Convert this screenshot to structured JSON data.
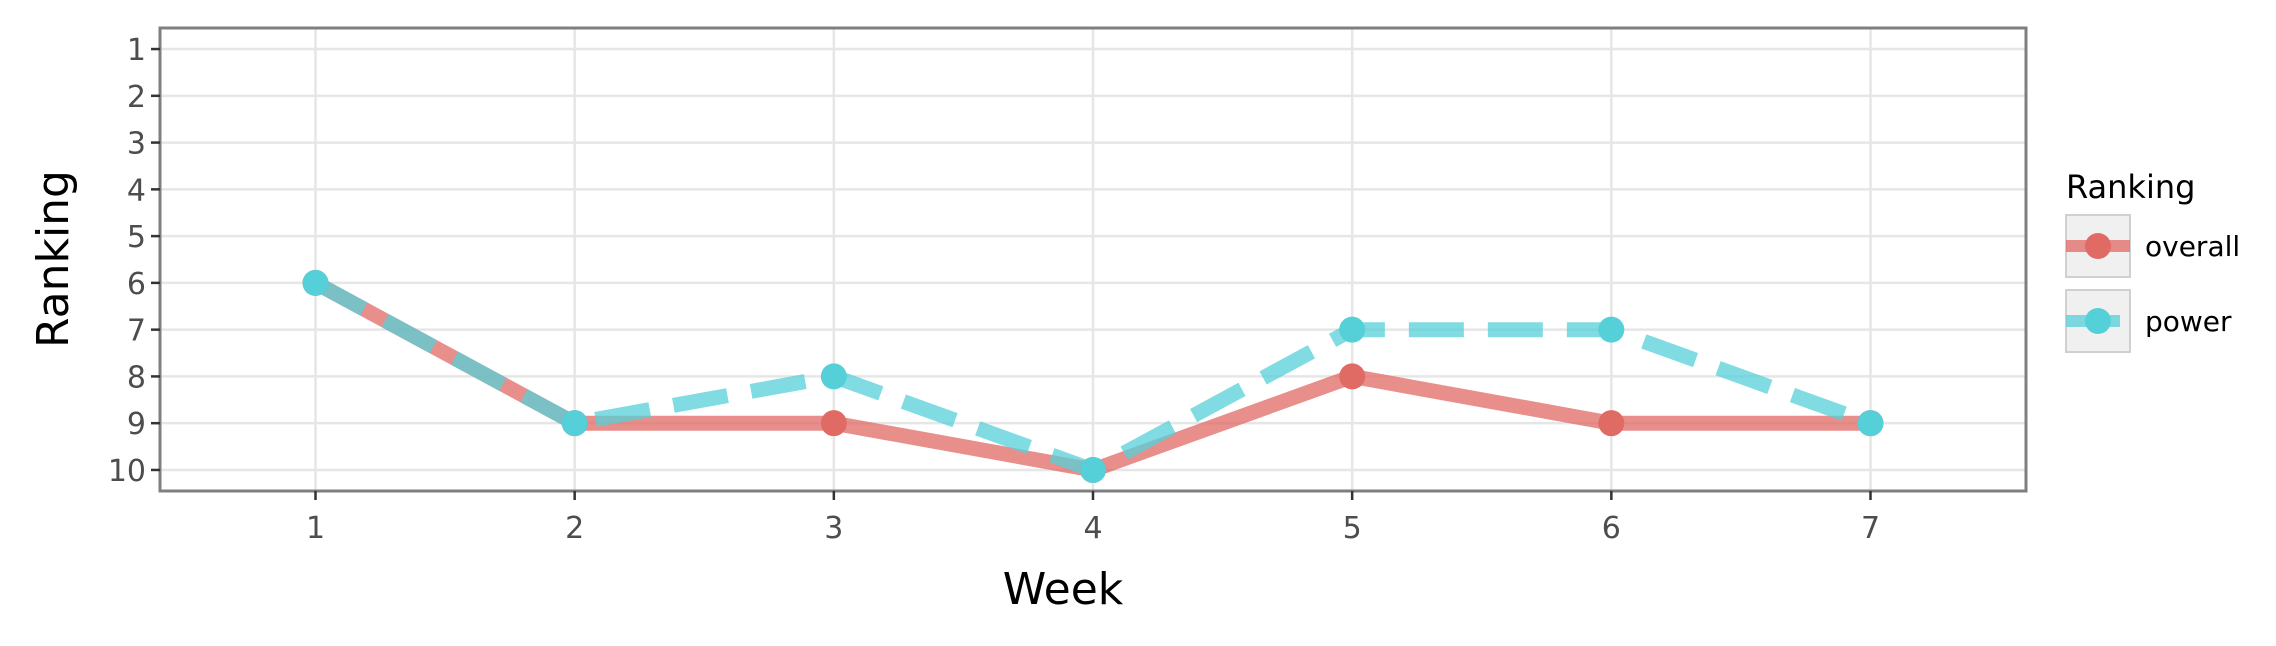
{
  "chart_data": {
    "type": "line",
    "title": "",
    "xlabel": "Week",
    "ylabel": "Ranking",
    "x": [
      1,
      2,
      3,
      4,
      5,
      6,
      7
    ],
    "x_ticks": [
      "1",
      "2",
      "3",
      "4",
      "5",
      "6",
      "7"
    ],
    "y_ticks": [
      "1",
      "2",
      "3",
      "4",
      "5",
      "6",
      "7",
      "8",
      "9",
      "10"
    ],
    "xlim": [
      0.4,
      7.6
    ],
    "ylim": [
      10.45,
      0.55
    ],
    "y_reversed": true,
    "grid": true,
    "legend": {
      "title": "Ranking",
      "position": "right"
    },
    "series": [
      {
        "name": "overall",
        "color": "#e06a64",
        "dash": "solid",
        "values": [
          6,
          9,
          9,
          10,
          8,
          9,
          9
        ]
      },
      {
        "name": "power",
        "color": "#56d0d8",
        "dash": "dashed",
        "values": [
          6,
          9,
          8,
          10,
          7,
          7,
          9
        ]
      }
    ]
  }
}
